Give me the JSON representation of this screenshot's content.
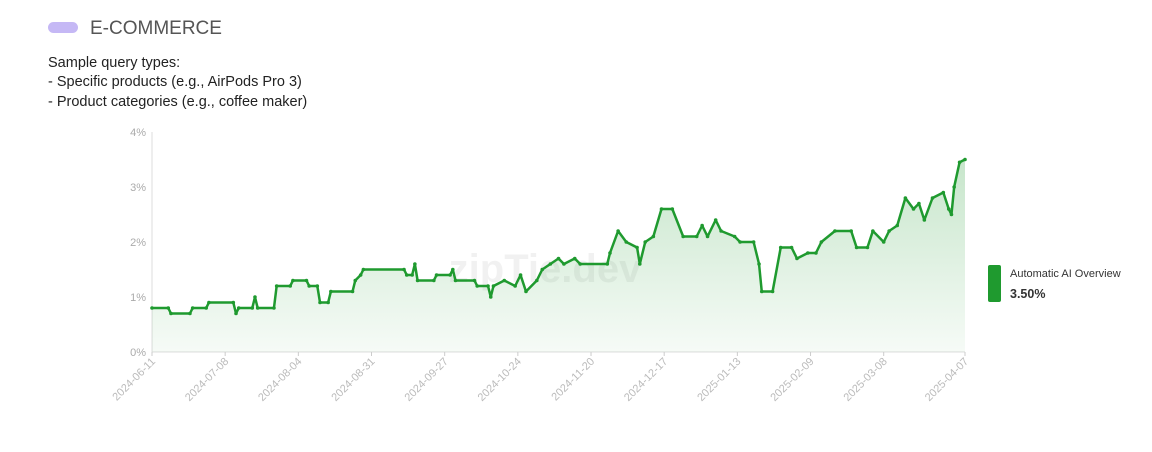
{
  "chart_data": {
    "type": "line",
    "title": "E-COMMERCE",
    "subtitle_lines": [
      "Sample query types:",
      "- Specific products (e.g., AirPods Pro 3)",
      "- Product categories (e.g., coffee maker)"
    ],
    "watermark": "zipTie.dev",
    "x": [
      "2024-06-11",
      "2024-06-17",
      "2024-06-18",
      "2024-06-25",
      "2024-06-26",
      "2024-07-01",
      "2024-07-02",
      "2024-07-11",
      "2024-07-12",
      "2024-07-13",
      "2024-07-18",
      "2024-07-19",
      "2024-07-20",
      "2024-07-26",
      "2024-07-27",
      "2024-08-01",
      "2024-08-02",
      "2024-08-07",
      "2024-08-08",
      "2024-08-11",
      "2024-08-12",
      "2024-08-15",
      "2024-08-16",
      "2024-08-24",
      "2024-08-25",
      "2024-08-27",
      "2024-08-28",
      "2024-09-12",
      "2024-09-13",
      "2024-09-15",
      "2024-09-16",
      "2024-09-17",
      "2024-09-23",
      "2024-09-24",
      "2024-09-29",
      "2024-09-30",
      "2024-10-01",
      "2024-10-08",
      "2024-10-09",
      "2024-10-13",
      "2024-10-14",
      "2024-10-15",
      "2024-10-19",
      "2024-10-23",
      "2024-10-25",
      "2024-10-27",
      "2024-10-31",
      "2024-11-02",
      "2024-11-05",
      "2024-11-08",
      "2024-11-10",
      "2024-11-14",
      "2024-11-16",
      "2024-11-26",
      "2024-11-27",
      "2024-11-30",
      "2024-12-03",
      "2024-12-07",
      "2024-12-08",
      "2024-12-10",
      "2024-12-13",
      "2024-12-16",
      "2024-12-20",
      "2024-12-24",
      "2024-12-29",
      "2024-12-31",
      "2025-01-02",
      "2025-01-05",
      "2025-01-07",
      "2025-01-12",
      "2025-01-14",
      "2025-01-19",
      "2025-01-21",
      "2025-01-22",
      "2025-01-26",
      "2025-01-29",
      "2025-02-02",
      "2025-02-04",
      "2025-02-08",
      "2025-02-11",
      "2025-02-13",
      "2025-02-18",
      "2025-02-24",
      "2025-02-26",
      "2025-03-02",
      "2025-03-04",
      "2025-03-08",
      "2025-03-10",
      "2025-03-13",
      "2025-03-16",
      "2025-03-19",
      "2025-03-21",
      "2025-03-23",
      "2025-03-26",
      "2025-03-30",
      "2025-04-01",
      "2025-04-02",
      "2025-04-03",
      "2025-04-05",
      "2025-04-07"
    ],
    "series": [
      {
        "name": "Automatic AI Overview",
        "color": "#1f9a2f",
        "values": [
          0.8,
          0.8,
          0.7,
          0.7,
          0.8,
          0.8,
          0.9,
          0.9,
          0.7,
          0.8,
          0.8,
          1.0,
          0.8,
          0.8,
          1.2,
          1.2,
          1.3,
          1.3,
          1.2,
          1.2,
          0.9,
          0.9,
          1.1,
          1.1,
          1.3,
          1.4,
          1.5,
          1.5,
          1.4,
          1.4,
          1.6,
          1.3,
          1.3,
          1.4,
          1.4,
          1.5,
          1.3,
          1.3,
          1.2,
          1.2,
          1.0,
          1.2,
          1.3,
          1.2,
          1.4,
          1.1,
          1.3,
          1.5,
          1.6,
          1.7,
          1.6,
          1.7,
          1.6,
          1.6,
          1.8,
          2.2,
          2.0,
          1.9,
          1.6,
          2.0,
          2.1,
          2.6,
          2.6,
          2.1,
          2.1,
          2.3,
          2.1,
          2.4,
          2.2,
          2.1,
          2.0,
          2.0,
          1.6,
          1.1,
          1.1,
          1.9,
          1.9,
          1.7,
          1.8,
          1.8,
          2.0,
          2.2,
          2.2,
          1.9,
          1.9,
          2.2,
          2.0,
          2.2,
          2.3,
          2.8,
          2.6,
          2.7,
          2.4,
          2.8,
          2.9,
          2.6,
          2.5,
          3.0,
          3.45,
          3.5
        ],
        "current": {
          "value": 3.5,
          "label": "3.50%"
        }
      }
    ],
    "xlim": [
      "2024-06-11",
      "2025-04-07"
    ],
    "xticks": [
      "2024-06-11",
      "2024-07-08",
      "2024-08-04",
      "2024-08-31",
      "2024-09-27",
      "2024-10-24",
      "2024-11-20",
      "2024-12-17",
      "2025-01-13",
      "2025-02-09",
      "2025-03-08",
      "2025-04-07"
    ],
    "ylim": [
      0,
      4
    ],
    "yticks": [
      {
        "value": 0,
        "label": "0%"
      },
      {
        "value": 1,
        "label": "1%"
      },
      {
        "value": 2,
        "label": "2%"
      },
      {
        "value": 3,
        "label": "3%"
      },
      {
        "value": 4,
        "label": "4%"
      }
    ],
    "area_fill": true,
    "legend": "right"
  }
}
